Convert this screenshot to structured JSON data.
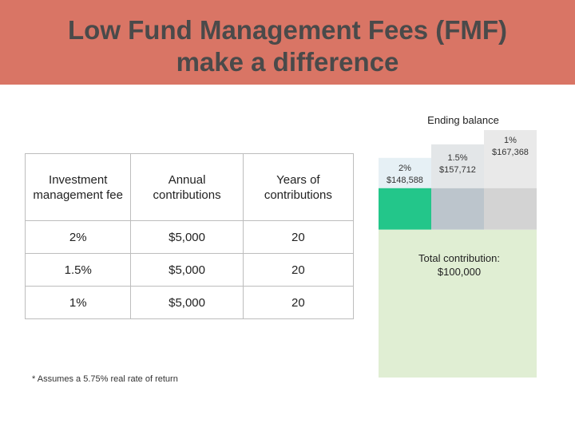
{
  "title": {
    "line1": "Low Fund Management Fees (FMF)",
    "line2": "make a difference"
  },
  "table": {
    "headers": [
      "Investment management fee",
      "Annual contributions",
      "Years of contributions"
    ],
    "rows": [
      [
        "2%",
        "$5,000",
        "20"
      ],
      [
        "1.5%",
        "$5,000",
        "20"
      ],
      [
        "1%",
        "$5,000",
        "20"
      ]
    ]
  },
  "footnote": "* Assumes a 5.75% real rate of return",
  "colors": {
    "banner": "#d97565",
    "contribution": "#e0eed3",
    "bar_2pct_base": "#23c68a",
    "bar_2pct_top": "#e6f0f5",
    "bar_15pct_base": "#bcc5cc",
    "bar_15pct_top": "#e3e6e8",
    "bar_1pct_base": "#d3d3d3",
    "bar_1pct_top": "#e9e9e9"
  },
  "chart_data": {
    "type": "bar",
    "title": "Ending balance",
    "categories": [
      "2%",
      "1.5%",
      "1%"
    ],
    "values": [
      148588,
      157712,
      167368
    ],
    "value_labels": [
      "$148,588",
      "$157,712",
      "$167,368"
    ],
    "total_contribution": 100000,
    "annotation": "Total contribution: $100,000",
    "ylim": [
      0,
      167368
    ]
  }
}
